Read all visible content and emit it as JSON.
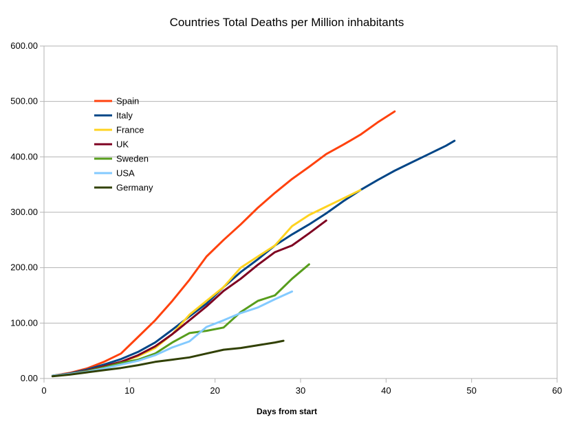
{
  "chart_data": {
    "type": "line",
    "title": "Countries Total Deaths per Million inhabitants",
    "xlabel": "Days from start",
    "ylabel": "",
    "xlim": [
      0,
      60
    ],
    "ylim": [
      0,
      600
    ],
    "x_ticks": [
      "0",
      "10",
      "20",
      "30",
      "40",
      "50",
      "60"
    ],
    "y_ticks": [
      "0.00",
      "100.00",
      "200.00",
      "300.00",
      "400.00",
      "500.00",
      "600.00"
    ],
    "grid": "horizontal",
    "legend_position": "top-left inside",
    "series": [
      {
        "name": "Spain",
        "color": "#ff420e",
        "points": [
          [
            1,
            5
          ],
          [
            3,
            10
          ],
          [
            5,
            18
          ],
          [
            7,
            30
          ],
          [
            9,
            45
          ],
          [
            11,
            75
          ],
          [
            13,
            105
          ],
          [
            15,
            140
          ],
          [
            17,
            178
          ],
          [
            19,
            220
          ],
          [
            21,
            250
          ],
          [
            23,
            278
          ],
          [
            25,
            308
          ],
          [
            27,
            335
          ],
          [
            29,
            360
          ],
          [
            31,
            382
          ],
          [
            33,
            405
          ],
          [
            35,
            422
          ],
          [
            37,
            440
          ],
          [
            39,
            462
          ],
          [
            41,
            482
          ]
        ]
      },
      {
        "name": "Italy",
        "color": "#004586",
        "points": [
          [
            1,
            5
          ],
          [
            3,
            9
          ],
          [
            5,
            16
          ],
          [
            7,
            25
          ],
          [
            9,
            35
          ],
          [
            11,
            48
          ],
          [
            13,
            65
          ],
          [
            15,
            88
          ],
          [
            17,
            112
          ],
          [
            19,
            135
          ],
          [
            21,
            165
          ],
          [
            23,
            192
          ],
          [
            25,
            215
          ],
          [
            27,
            240
          ],
          [
            29,
            260
          ],
          [
            31,
            278
          ],
          [
            33,
            298
          ],
          [
            35,
            320
          ],
          [
            37,
            340
          ],
          [
            39,
            358
          ],
          [
            41,
            375
          ],
          [
            43,
            390
          ],
          [
            45,
            405
          ],
          [
            47,
            420
          ],
          [
            48,
            429
          ]
        ]
      },
      {
        "name": "France",
        "color": "#ffd320",
        "points": [
          [
            1,
            5
          ],
          [
            3,
            8
          ],
          [
            5,
            14
          ],
          [
            7,
            22
          ],
          [
            9,
            30
          ],
          [
            11,
            40
          ],
          [
            13,
            55
          ],
          [
            15,
            80
          ],
          [
            17,
            115
          ],
          [
            19,
            140
          ],
          [
            21,
            165
          ],
          [
            23,
            200
          ],
          [
            25,
            220
          ],
          [
            27,
            240
          ],
          [
            29,
            275
          ],
          [
            31,
            295
          ],
          [
            33,
            310
          ],
          [
            35,
            325
          ],
          [
            37,
            340
          ]
        ]
      },
      {
        "name": "UK",
        "color": "#7e0021",
        "points": [
          [
            1,
            5
          ],
          [
            3,
            8
          ],
          [
            5,
            14
          ],
          [
            7,
            22
          ],
          [
            9,
            30
          ],
          [
            11,
            42
          ],
          [
            13,
            58
          ],
          [
            15,
            80
          ],
          [
            17,
            105
          ],
          [
            19,
            130
          ],
          [
            21,
            158
          ],
          [
            23,
            180
          ],
          [
            25,
            205
          ],
          [
            27,
            228
          ],
          [
            29,
            240
          ],
          [
            31,
            262
          ],
          [
            33,
            285
          ]
        ]
      },
      {
        "name": "Sweden",
        "color": "#579d1c",
        "points": [
          [
            1,
            5
          ],
          [
            3,
            8
          ],
          [
            5,
            13
          ],
          [
            7,
            20
          ],
          [
            9,
            28
          ],
          [
            11,
            34
          ],
          [
            13,
            45
          ],
          [
            15,
            65
          ],
          [
            17,
            82
          ],
          [
            19,
            86
          ],
          [
            21,
            92
          ],
          [
            23,
            120
          ],
          [
            25,
            140
          ],
          [
            27,
            150
          ],
          [
            29,
            180
          ],
          [
            31,
            206
          ]
        ]
      },
      {
        "name": "USA",
        "color": "#83caff",
        "points": [
          [
            1,
            5
          ],
          [
            3,
            8
          ],
          [
            5,
            12
          ],
          [
            7,
            18
          ],
          [
            9,
            25
          ],
          [
            11,
            32
          ],
          [
            13,
            42
          ],
          [
            15,
            56
          ],
          [
            17,
            67
          ],
          [
            19,
            93
          ],
          [
            21,
            105
          ],
          [
            23,
            118
          ],
          [
            25,
            128
          ],
          [
            27,
            143
          ],
          [
            29,
            157
          ]
        ]
      },
      {
        "name": "Germany",
        "color": "#314004",
        "points": [
          [
            1,
            4
          ],
          [
            3,
            7
          ],
          [
            5,
            11
          ],
          [
            7,
            15
          ],
          [
            9,
            19
          ],
          [
            11,
            24
          ],
          [
            13,
            30
          ],
          [
            15,
            34
          ],
          [
            17,
            38
          ],
          [
            19,
            45
          ],
          [
            21,
            52
          ],
          [
            23,
            55
          ],
          [
            25,
            60
          ],
          [
            27,
            65
          ],
          [
            28,
            68
          ]
        ]
      }
    ]
  }
}
